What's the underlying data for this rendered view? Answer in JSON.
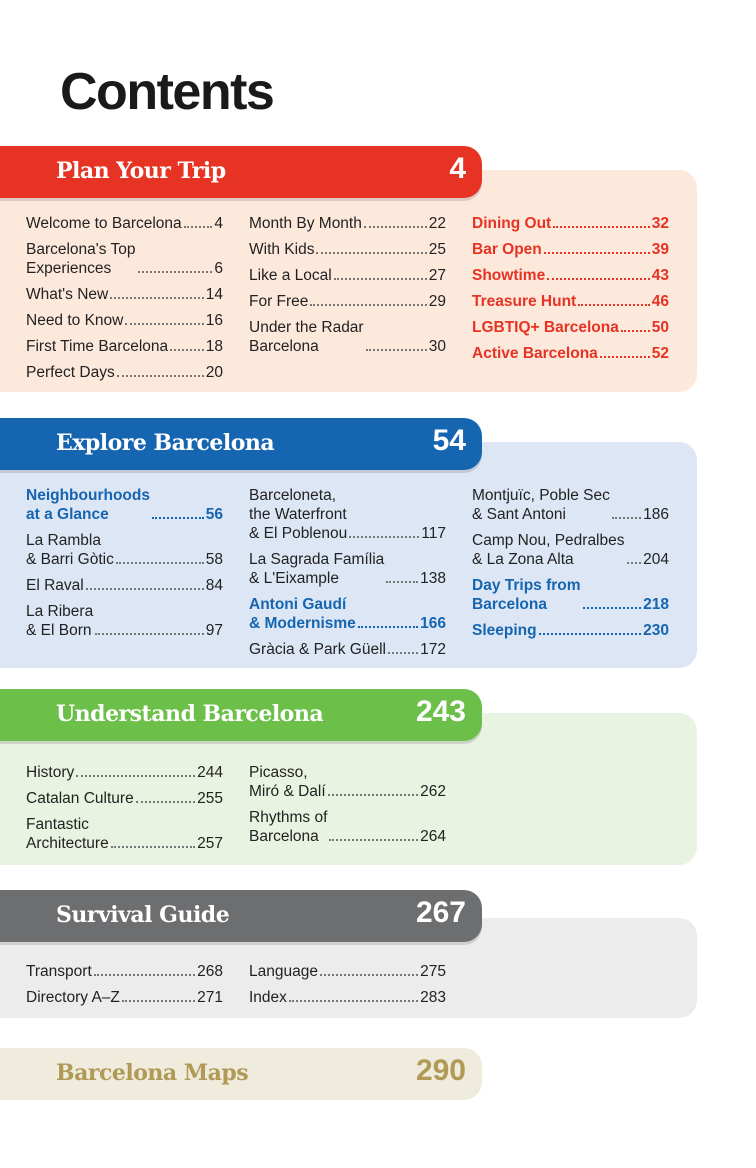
{
  "title": "Contents",
  "sections": [
    {
      "title": "Plan Your Trip",
      "page": "4",
      "colors": {
        "tab": "#e63323",
        "panel": "#fde8dc"
      },
      "columns": [
        [
          {
            "label": "Welcome to Barcelona",
            "page": "4"
          },
          {
            "label": "Barcelona's Top\nExperiences",
            "page": "6"
          },
          {
            "label": "What's New",
            "page": "14"
          },
          {
            "label": "Need to Know",
            "page": "16"
          },
          {
            "label": "First Time Barcelona",
            "page": "18"
          },
          {
            "label": "Perfect Days",
            "page": "20"
          }
        ],
        [
          {
            "label": "Month By Month",
            "page": "22"
          },
          {
            "label": "With Kids",
            "page": "25"
          },
          {
            "label": "Like a Local",
            "page": "27"
          },
          {
            "label": "For Free",
            "page": "29"
          },
          {
            "label": "Under the Radar\nBarcelona",
            "page": "30"
          }
        ],
        [
          {
            "label": "Dining Out",
            "page": "32",
            "hl": "red"
          },
          {
            "label": "Bar Open",
            "page": "39",
            "hl": "red"
          },
          {
            "label": "Showtime",
            "page": "43",
            "hl": "red"
          },
          {
            "label": "Treasure Hunt",
            "page": "46",
            "hl": "red"
          },
          {
            "label": "LGBTIQ+ Barcelona",
            "page": "50",
            "hl": "red"
          },
          {
            "label": "Active Barcelona",
            "page": "52",
            "hl": "red"
          }
        ]
      ]
    },
    {
      "title": "Explore Barcelona",
      "page": "54",
      "colors": {
        "tab": "#1565b0",
        "panel": "#dde6f4"
      },
      "columns": [
        [
          {
            "label": "Neighbourhoods\nat a Glance",
            "page": "56",
            "hl": "blue"
          },
          {
            "label": "La Rambla\n& Barri Gòtic",
            "page": "58"
          },
          {
            "label": "El Raval",
            "page": "84"
          },
          {
            "label": "La Ribera\n& El Born",
            "page": "97"
          }
        ],
        [
          {
            "label": "Barceloneta,\nthe Waterfront\n& El Poblenou",
            "page": "117"
          },
          {
            "label": "La Sagrada Família\n& L'Eixample",
            "page": "138"
          },
          {
            "label": "Antoni Gaudí\n& Modernisme",
            "page": "166",
            "hl": "blue"
          },
          {
            "label": "Gràcia & Park Güell",
            "page": "172"
          }
        ],
        [
          {
            "label": "Montjuïc, Poble Sec\n& Sant Antoni",
            "page": "186"
          },
          {
            "label": "Camp Nou, Pedralbes\n& La Zona Alta",
            "page": "204"
          },
          {
            "label": "Day Trips from\nBarcelona",
            "page": "218",
            "hl": "blue"
          },
          {
            "label": "Sleeping",
            "page": "230",
            "hl": "blue"
          }
        ]
      ]
    },
    {
      "title": "Understand Barcelona",
      "page": "243",
      "colors": {
        "tab": "#6cc04a",
        "panel": "#e8f3e1"
      },
      "columns": [
        [
          {
            "label": "History",
            "page": "244"
          },
          {
            "label": "Catalan Culture",
            "page": "255"
          },
          {
            "label": "Fantastic\nArchitecture",
            "page": "257"
          }
        ],
        [
          {
            "label": "Picasso,\nMiró & Dalí",
            "page": "262"
          },
          {
            "label": "Rhythms of\nBarcelona",
            "page": "264"
          }
        ]
      ]
    },
    {
      "title": "Survival Guide",
      "page": "267",
      "colors": {
        "tab": "#6d6e70",
        "panel": "#ececec"
      },
      "columns": [
        [
          {
            "label": "Transport",
            "page": "268"
          },
          {
            "label": "Directory A–Z",
            "page": "271"
          }
        ],
        [
          {
            "label": "Language",
            "page": "275"
          },
          {
            "label": "Index",
            "page": "283"
          }
        ]
      ]
    },
    {
      "title": "Barcelona Maps",
      "page": "290",
      "colors": {
        "tab": "#efebdd",
        "text": "#b09a55"
      },
      "columns": []
    }
  ]
}
